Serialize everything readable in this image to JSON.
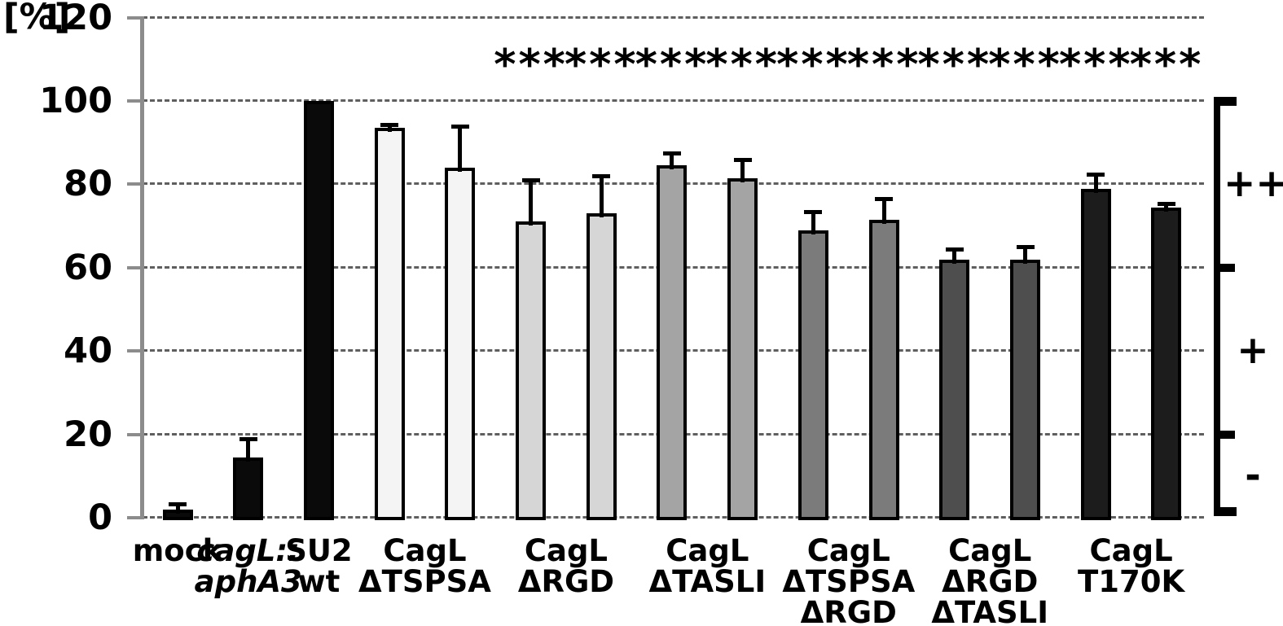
{
  "chart_data": {
    "type": "bar",
    "title": "",
    "ylabel": "[%]",
    "xlabel": "",
    "ylim": [
      0,
      120
    ],
    "yticks": [
      0,
      20,
      40,
      60,
      80,
      100,
      120
    ],
    "grid": "dashed-horizontal",
    "legend_position": "none",
    "sig_marker": "***",
    "groups": [
      {
        "labels": [
          {
            "text": "mock",
            "italic": false
          }
        ],
        "bars": [
          {
            "value": 2,
            "error": 1.4,
            "color": "#0a0a0a",
            "sig": false
          }
        ]
      },
      {
        "labels": [
          {
            "text": "cagL::",
            "italic": true
          },
          {
            "text": "aphA3",
            "italic": true
          }
        ],
        "bars": [
          {
            "value": 14.5,
            "error": 4.5,
            "color": "#0a0a0a",
            "sig": false
          }
        ]
      },
      {
        "labels": [
          {
            "text": "SU2",
            "italic": false
          },
          {
            "text": "wt",
            "italic": false
          }
        ],
        "bars": [
          {
            "value": 100,
            "error": 0,
            "color": "#0a0a0a",
            "sig": false
          }
        ]
      },
      {
        "labels": [
          {
            "text": "CagL",
            "italic": false
          },
          {
            "text": "ΔTSPSA",
            "italic": false
          }
        ],
        "bars": [
          {
            "value": 93.5,
            "error": 0.8,
            "color": "#f4f4f4",
            "sig": false
          },
          {
            "value": 84,
            "error": 10,
            "color": "#f4f4f4",
            "sig": false
          }
        ]
      },
      {
        "labels": [
          {
            "text": "CagL",
            "italic": false
          },
          {
            "text": "ΔRGD",
            "italic": false
          }
        ],
        "bars": [
          {
            "value": 71,
            "error": 10,
            "color": "#d6d6d6",
            "sig": true
          },
          {
            "value": 73,
            "error": 9,
            "color": "#d6d6d6",
            "sig": true
          }
        ]
      },
      {
        "labels": [
          {
            "text": "CagL",
            "italic": false
          },
          {
            "text": "ΔTASLI",
            "italic": false
          }
        ],
        "bars": [
          {
            "value": 84.5,
            "error": 3,
            "color": "#a4a4a4",
            "sig": true
          },
          {
            "value": 81.5,
            "error": 4.5,
            "color": "#a4a4a4",
            "sig": true
          }
        ]
      },
      {
        "labels": [
          {
            "text": "CagL",
            "italic": false
          },
          {
            "text": "ΔTSPSA",
            "italic": false
          },
          {
            "text": "ΔRGD",
            "italic": false
          }
        ],
        "bars": [
          {
            "value": 69,
            "error": 4.5,
            "color": "#7b7b7b",
            "sig": true
          },
          {
            "value": 71.5,
            "error": 5,
            "color": "#7b7b7b",
            "sig": true
          }
        ]
      },
      {
        "labels": [
          {
            "text": "CagL",
            "italic": false
          },
          {
            "text": "ΔRGD",
            "italic": false
          },
          {
            "text": "ΔTASLI",
            "italic": false
          }
        ],
        "bars": [
          {
            "value": 62,
            "error": 2.5,
            "color": "#4e4e4e",
            "sig": true
          },
          {
            "value": 62,
            "error": 3,
            "color": "#4e4e4e",
            "sig": true
          }
        ]
      },
      {
        "labels": [
          {
            "text": "CagL",
            "italic": false
          },
          {
            "text": "T170K",
            "italic": false
          }
        ],
        "bars": [
          {
            "value": 79,
            "error": 3.5,
            "color": "#1c1c1c",
            "sig": true
          },
          {
            "value": 74.5,
            "error": 0.8,
            "color": "#1c1c1c",
            "sig": true
          }
        ]
      }
    ],
    "right_bracket": {
      "segments": [
        {
          "label": "++",
          "range": [
            60,
            100
          ]
        },
        {
          "label": "+",
          "range": [
            20,
            60
          ]
        },
        {
          "label": "-",
          "range": [
            0,
            20
          ]
        }
      ]
    },
    "colors": {
      "axis": "#8c8c8c",
      "grid": "#5f5f5f",
      "bar_border": "#000000",
      "error": "#000000",
      "text": "#000000",
      "background": "#ffffff"
    }
  }
}
